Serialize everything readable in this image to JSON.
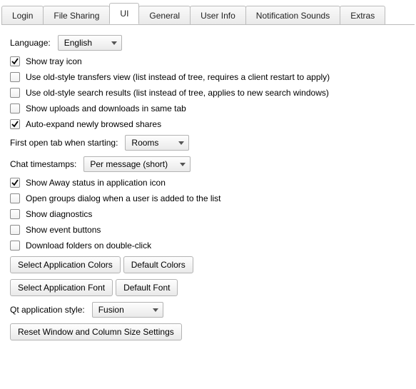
{
  "tabs": [
    {
      "label": "Login",
      "active": false
    },
    {
      "label": "File Sharing",
      "active": false
    },
    {
      "label": "UI",
      "active": true
    },
    {
      "label": "General",
      "active": false
    },
    {
      "label": "User Info",
      "active": false
    },
    {
      "label": "Notification Sounds",
      "active": false
    },
    {
      "label": "Extras",
      "active": false
    }
  ],
  "language": {
    "label": "Language:",
    "value": "English"
  },
  "checkboxes": [
    {
      "name": "show-tray-icon",
      "checked": true,
      "label": "Show tray icon"
    },
    {
      "name": "old-transfers-view",
      "checked": false,
      "label": "Use old-style transfers view (list instead of tree, requires a client restart to apply)"
    },
    {
      "name": "old-search-results",
      "checked": false,
      "label": "Use old-style search results (list instead of tree, applies to new search windows)"
    },
    {
      "name": "uploads-downloads-same-tab",
      "checked": false,
      "label": "Show uploads and downloads in same tab"
    },
    {
      "name": "auto-expand-shares",
      "checked": true,
      "label": "Auto-expand newly browsed shares"
    }
  ],
  "first_tab": {
    "label": "First open tab when starting:",
    "value": "Rooms"
  },
  "chat_ts": {
    "label": "Chat timestamps:",
    "value": "Per message (short)"
  },
  "checkboxes2": [
    {
      "name": "away-in-icon",
      "checked": true,
      "label": "Show Away status in application icon"
    },
    {
      "name": "open-groups-on-add",
      "checked": false,
      "label": "Open groups dialog when a user is added to the list"
    },
    {
      "name": "show-diagnostics",
      "checked": false,
      "label": "Show diagnostics"
    },
    {
      "name": "show-event-buttons",
      "checked": false,
      "label": "Show event buttons"
    },
    {
      "name": "download-folders-dblclick",
      "checked": false,
      "label": "Download folders on double-click"
    }
  ],
  "buttons": {
    "colors": "Select Application Colors",
    "colors_default": "Default Colors",
    "font": "Select Application Font",
    "font_default": "Default Font",
    "reset": "Reset Window and Column Size Settings"
  },
  "qt_style": {
    "label": "Qt application style:",
    "value": "Fusion"
  },
  "colors": {
    "border": "#bbbbbb",
    "tab_active_bg": "#ffffff",
    "tab_inactive_bg_top": "#fafafa",
    "tab_inactive_bg_bottom": "#e9e9e9",
    "arrow": "#555555"
  }
}
